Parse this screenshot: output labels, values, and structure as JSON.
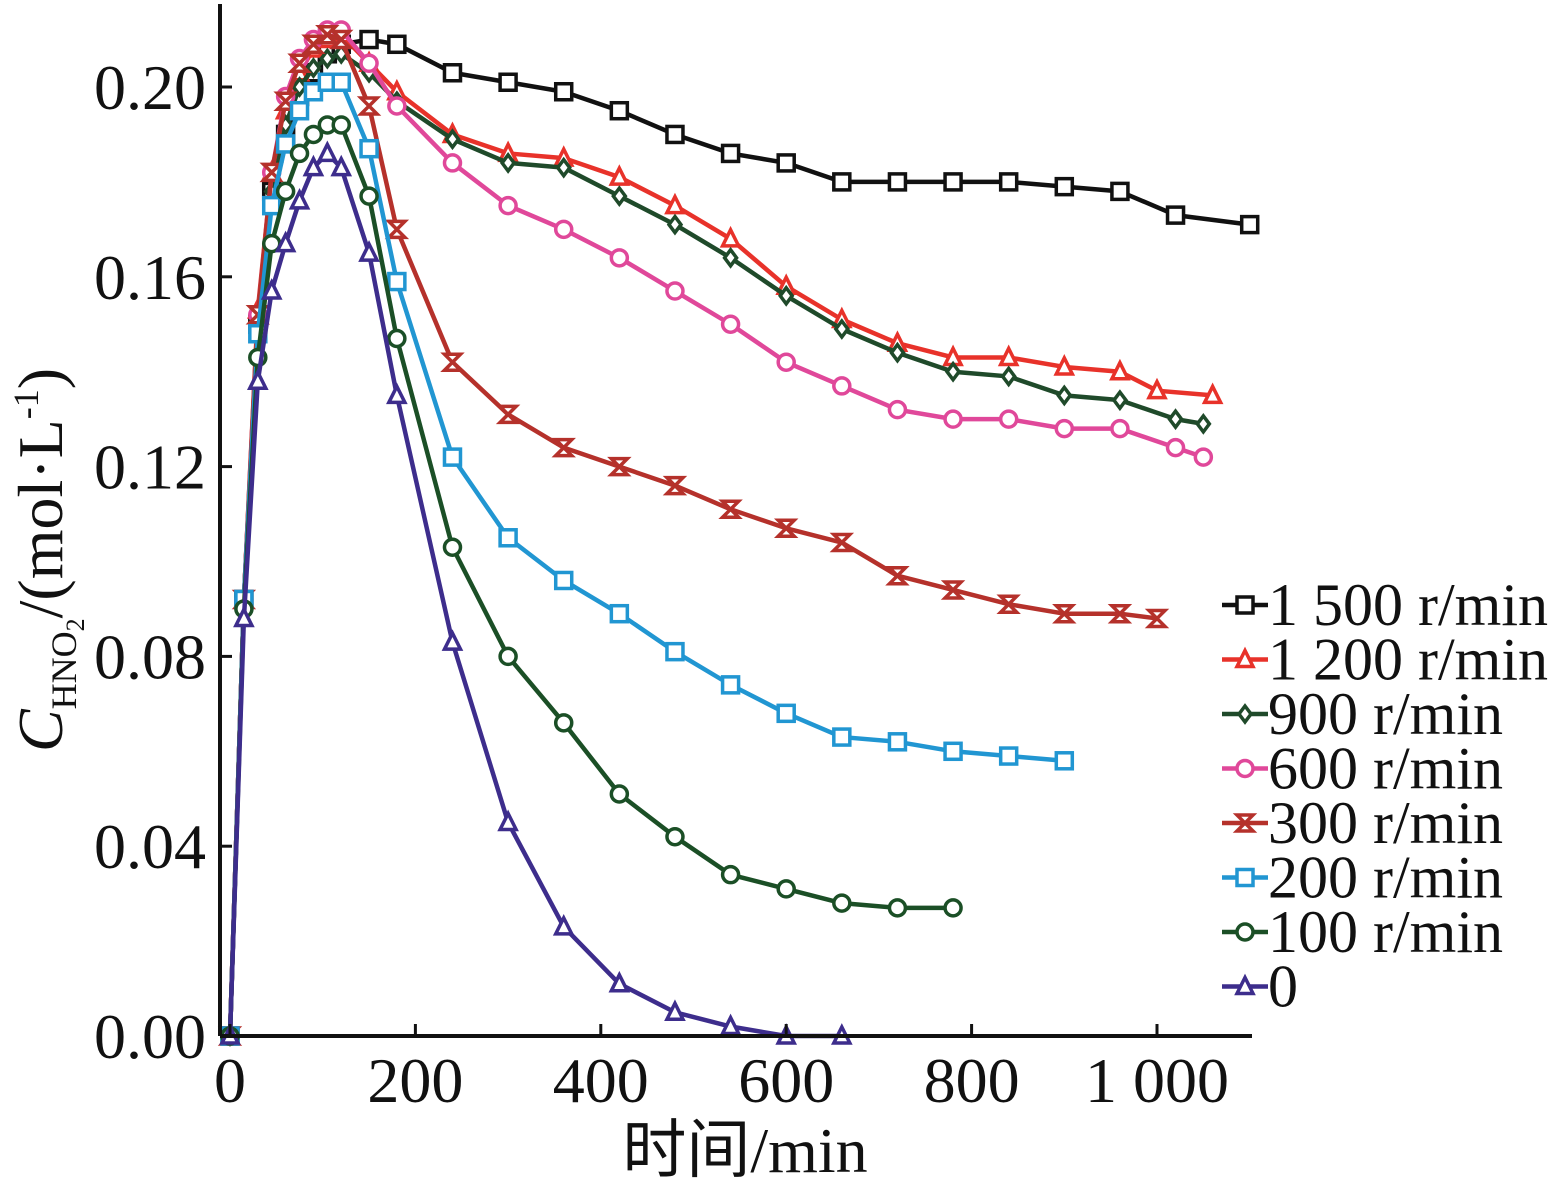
{
  "chart_data": {
    "type": "line",
    "xlabel": "时间/min",
    "ylabel": {
      "main": "C",
      "sub": "HNO",
      "sub2": "2",
      "rest": "/(mol·L",
      "sup": "-1",
      "close": ")"
    },
    "xlim": [
      0,
      1100
    ],
    "ylim": [
      0,
      0.2175
    ],
    "xticks": [
      0,
      200,
      400,
      600,
      800,
      1000
    ],
    "xtick_labels": [
      "0",
      "200",
      "400",
      "600",
      "800",
      "1 000"
    ],
    "yticks": [
      0.0,
      0.04,
      0.08,
      0.12,
      0.16,
      0.2
    ],
    "ytick_labels": [
      "0.00",
      "0.04",
      "0.08",
      "0.12",
      "0.16",
      "0.20"
    ],
    "legend_position": "right",
    "series": [
      {
        "name": "1 500 r/min",
        "color": "#111111",
        "marker": "square",
        "x": [
          0,
          15,
          30,
          45,
          60,
          75,
          90,
          105,
          120,
          150,
          180,
          240,
          300,
          360,
          420,
          480,
          540,
          600,
          660,
          720,
          780,
          840,
          900,
          960,
          1020,
          1100
        ],
        "y": [
          0.0,
          0.092,
          0.15,
          0.178,
          0.19,
          0.198,
          0.203,
          0.207,
          0.209,
          0.21,
          0.209,
          0.203,
          0.201,
          0.199,
          0.195,
          0.19,
          0.186,
          0.184,
          0.18,
          0.18,
          0.18,
          0.18,
          0.179,
          0.178,
          0.173,
          0.171
        ]
      },
      {
        "name": "1 200 r/min",
        "color": "#e8322a",
        "marker": "triangle",
        "x": [
          0,
          15,
          30,
          45,
          60,
          75,
          90,
          105,
          120,
          150,
          180,
          240,
          300,
          360,
          420,
          480,
          540,
          600,
          660,
          720,
          780,
          840,
          900,
          960,
          1000,
          1060
        ],
        "y": [
          0.0,
          0.092,
          0.153,
          0.182,
          0.195,
          0.203,
          0.208,
          0.21,
          0.211,
          0.205,
          0.199,
          0.19,
          0.186,
          0.185,
          0.181,
          0.175,
          0.168,
          0.158,
          0.151,
          0.146,
          0.143,
          0.143,
          0.141,
          0.14,
          0.136,
          0.135
        ]
      },
      {
        "name": "900 r/min",
        "color": "#1f4a2a",
        "marker": "diamond",
        "x": [
          0,
          15,
          30,
          45,
          60,
          75,
          90,
          105,
          120,
          150,
          180,
          240,
          300,
          360,
          420,
          480,
          540,
          600,
          660,
          720,
          780,
          840,
          900,
          960,
          1020,
          1050
        ],
        "y": [
          0.0,
          0.092,
          0.15,
          0.178,
          0.192,
          0.2,
          0.204,
          0.206,
          0.207,
          0.203,
          0.197,
          0.189,
          0.184,
          0.183,
          0.177,
          0.171,
          0.164,
          0.156,
          0.149,
          0.144,
          0.14,
          0.139,
          0.135,
          0.134,
          0.13,
          0.129
        ]
      },
      {
        "name": "600 r/min",
        "color": "#e0489a",
        "marker": "circle",
        "x": [
          0,
          15,
          30,
          45,
          60,
          75,
          90,
          105,
          120,
          150,
          180,
          240,
          300,
          360,
          420,
          480,
          540,
          600,
          660,
          720,
          780,
          840,
          900,
          960,
          1020,
          1050
        ],
        "y": [
          0.0,
          0.092,
          0.152,
          0.182,
          0.198,
          0.206,
          0.21,
          0.212,
          0.212,
          0.205,
          0.196,
          0.184,
          0.175,
          0.17,
          0.164,
          0.157,
          0.15,
          0.142,
          0.137,
          0.132,
          0.13,
          0.13,
          0.128,
          0.128,
          0.124,
          0.122
        ]
      },
      {
        "name": "300 r/min",
        "color": "#b5312b",
        "marker": "hourglass",
        "x": [
          0,
          15,
          30,
          45,
          60,
          75,
          90,
          105,
          120,
          150,
          180,
          240,
          300,
          360,
          420,
          480,
          540,
          600,
          660,
          720,
          780,
          840,
          900,
          960,
          1000
        ],
        "y": [
          0.0,
          0.092,
          0.152,
          0.182,
          0.197,
          0.205,
          0.209,
          0.211,
          0.21,
          0.196,
          0.17,
          0.142,
          0.131,
          0.124,
          0.12,
          0.116,
          0.111,
          0.107,
          0.104,
          0.097,
          0.094,
          0.091,
          0.089,
          0.089,
          0.088
        ]
      },
      {
        "name": "200 r/min",
        "color": "#2196d2",
        "marker": "square",
        "x": [
          0,
          15,
          30,
          45,
          60,
          75,
          90,
          105,
          120,
          150,
          180,
          240,
          300,
          360,
          420,
          480,
          540,
          600,
          660,
          720,
          780,
          840,
          900
        ],
        "y": [
          0.0,
          0.092,
          0.148,
          0.175,
          0.188,
          0.195,
          0.199,
          0.201,
          0.201,
          0.187,
          0.159,
          0.122,
          0.105,
          0.096,
          0.089,
          0.081,
          0.074,
          0.068,
          0.063,
          0.062,
          0.06,
          0.059,
          0.058
        ]
      },
      {
        "name": "100 r/min",
        "color": "#1b4f26",
        "marker": "circle",
        "x": [
          0,
          15,
          30,
          45,
          60,
          75,
          90,
          105,
          120,
          150,
          180,
          240,
          300,
          360,
          420,
          480,
          540,
          600,
          660,
          720,
          780
        ],
        "y": [
          0.0,
          0.09,
          0.143,
          0.167,
          0.178,
          0.186,
          0.19,
          0.192,
          0.192,
          0.177,
          0.147,
          0.103,
          0.08,
          0.066,
          0.051,
          0.042,
          0.034,
          0.031,
          0.028,
          0.027,
          0.027
        ]
      },
      {
        "name": "0",
        "color": "#3d2d8c",
        "marker": "triangle",
        "x": [
          0,
          15,
          30,
          45,
          60,
          75,
          90,
          105,
          120,
          150,
          180,
          240,
          300,
          360,
          420,
          480,
          540,
          600,
          660
        ],
        "y": [
          0.0,
          0.088,
          0.138,
          0.157,
          0.167,
          0.176,
          0.183,
          0.186,
          0.183,
          0.165,
          0.135,
          0.083,
          0.045,
          0.023,
          0.011,
          0.005,
          0.002,
          0.0,
          0.0
        ]
      }
    ]
  }
}
